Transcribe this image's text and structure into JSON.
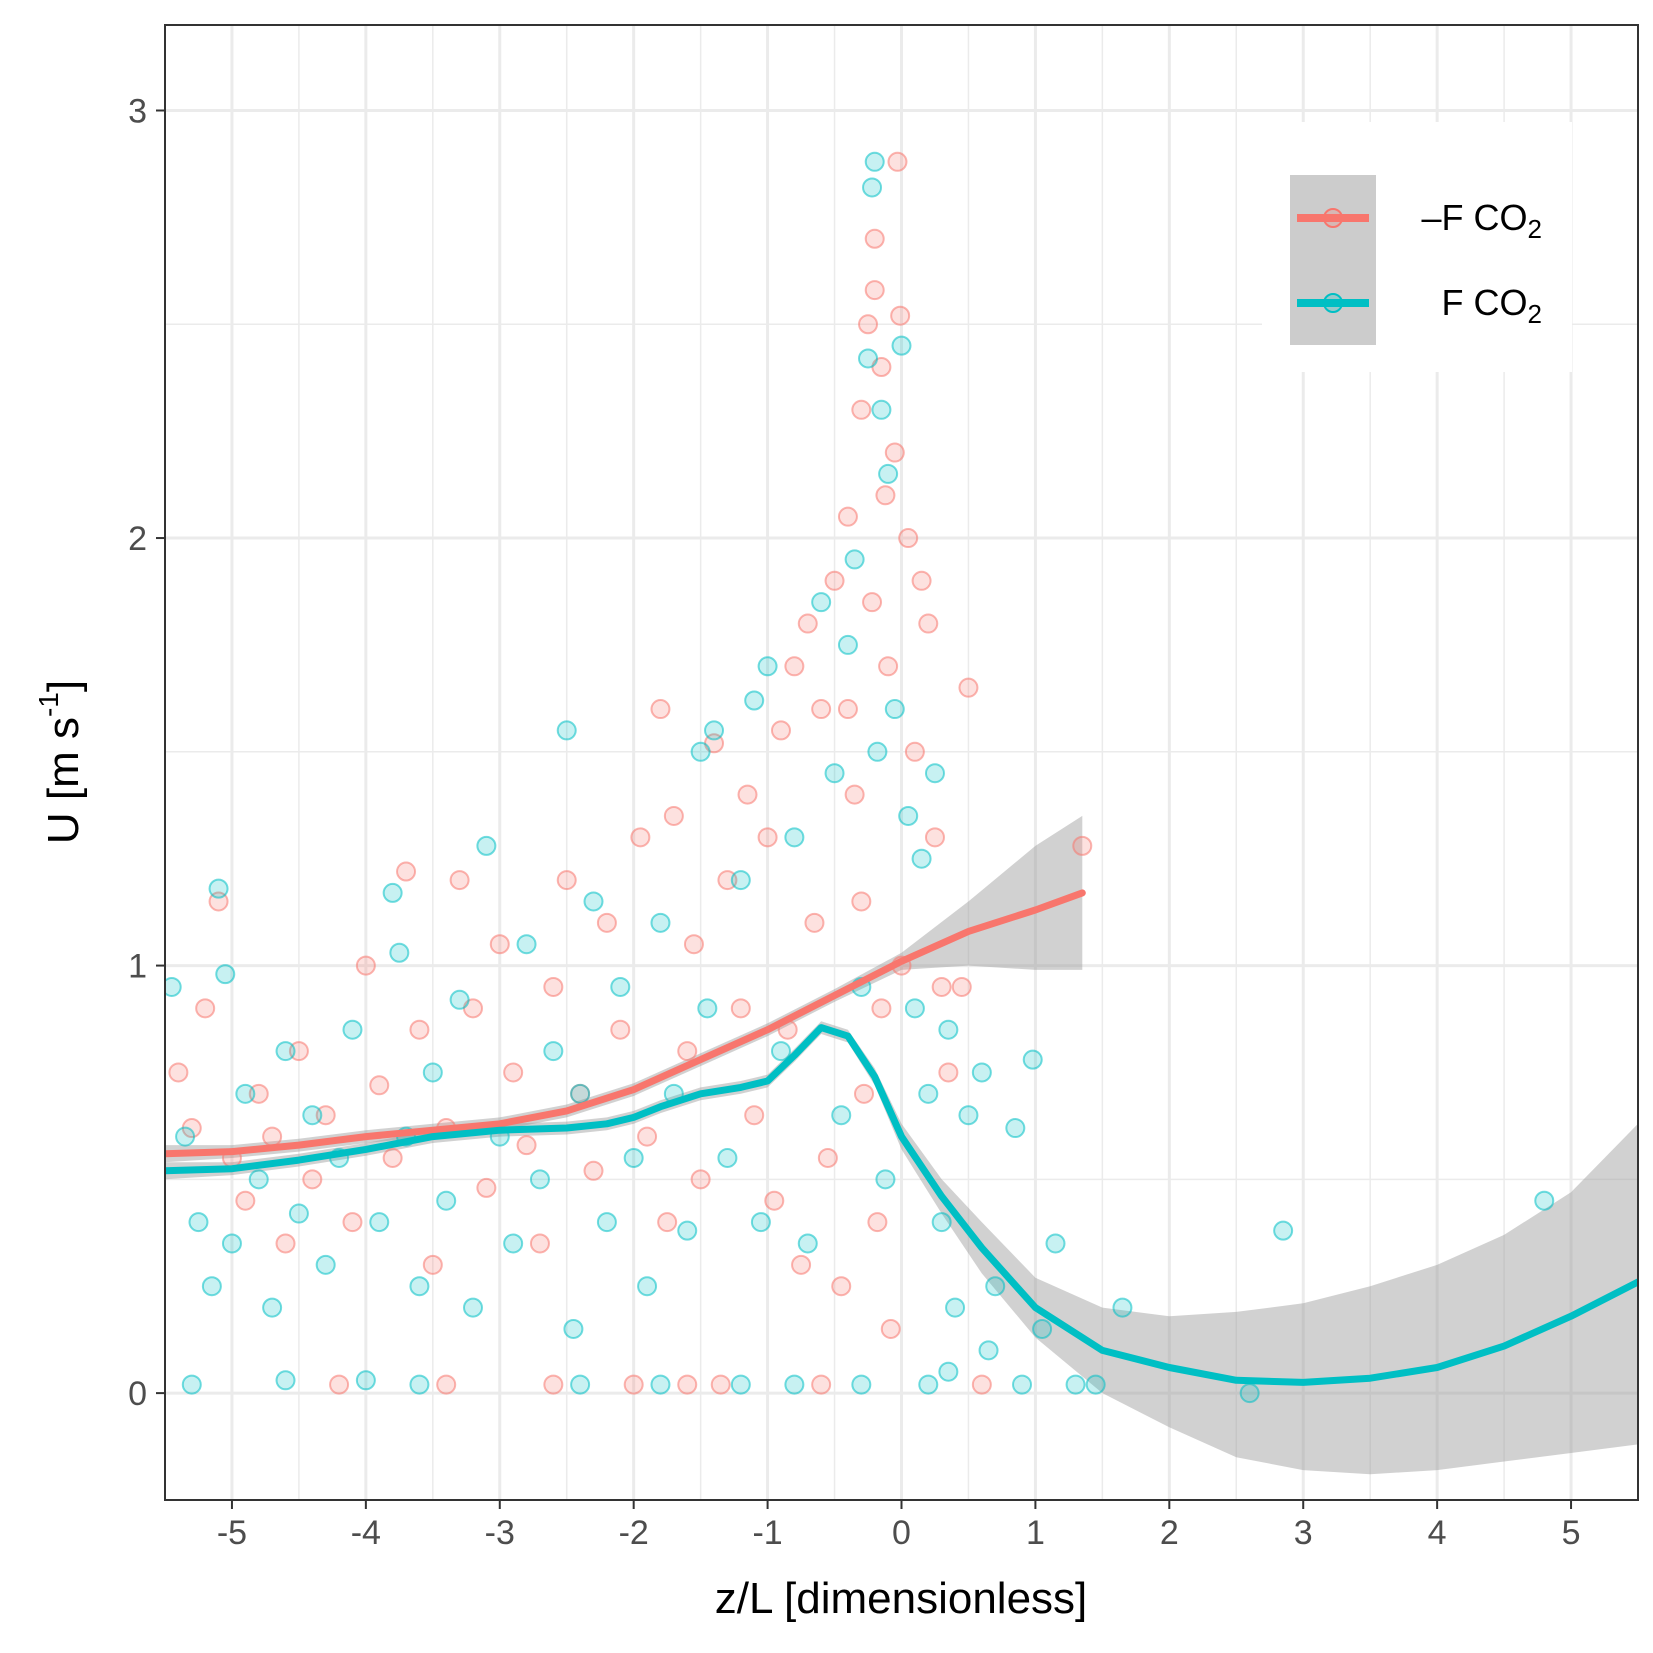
{
  "chart_data": {
    "type": "scatter",
    "xlabel": "z/L [dimensionless]",
    "ylabel": {
      "main": "U [m s",
      "sup": "-1",
      "close": "]"
    },
    "xlim": [
      -5.5,
      5.5
    ],
    "ylim": [
      -0.25,
      3.2
    ],
    "x_ticks": [
      -5,
      -4,
      -3,
      -2,
      -1,
      0,
      1,
      2,
      3,
      4,
      5
    ],
    "y_ticks": [
      0,
      1,
      2,
      3
    ],
    "grid": true,
    "legend_position": "top-right",
    "series": [
      {
        "name": "–F CO",
        "name_sub": "2",
        "color": "#F8766D",
        "smooth": {
          "x": [
            -5.5,
            -5,
            -4.5,
            -4,
            -3.5,
            -3,
            -2.5,
            -2,
            -1.5,
            -1,
            -0.5,
            0,
            0.5,
            1,
            1.35
          ],
          "y": [
            0.56,
            0.565,
            0.58,
            0.6,
            0.615,
            0.63,
            0.66,
            0.71,
            0.78,
            0.85,
            0.93,
            1.01,
            1.08,
            1.13,
            1.17
          ],
          "lower": [
            0.54,
            0.55,
            0.565,
            0.585,
            0.6,
            0.615,
            0.645,
            0.695,
            0.765,
            0.835,
            0.915,
            0.99,
            1.0,
            0.99,
            0.99
          ],
          "upper": [
            0.58,
            0.58,
            0.595,
            0.615,
            0.63,
            0.645,
            0.675,
            0.725,
            0.795,
            0.865,
            0.945,
            1.03,
            1.15,
            1.28,
            1.35
          ]
        },
        "points": [
          [
            -5.4,
            0.75
          ],
          [
            -5.3,
            0.62
          ],
          [
            -5.2,
            0.9
          ],
          [
            -5.1,
            1.15
          ],
          [
            -5.0,
            0.55
          ],
          [
            -4.9,
            0.45
          ],
          [
            -4.8,
            0.7
          ],
          [
            -4.7,
            0.6
          ],
          [
            -4.6,
            0.35
          ],
          [
            -4.5,
            0.8
          ],
          [
            -4.4,
            0.5
          ],
          [
            -4.3,
            0.65
          ],
          [
            -4.2,
            0.02
          ],
          [
            -4.1,
            0.4
          ],
          [
            -4.0,
            1.0
          ],
          [
            -3.9,
            0.72
          ],
          [
            -3.8,
            0.55
          ],
          [
            -3.7,
            1.22
          ],
          [
            -3.6,
            0.85
          ],
          [
            -3.5,
            0.3
          ],
          [
            -3.4,
            0.62
          ],
          [
            -3.3,
            1.2
          ],
          [
            -3.2,
            0.9
          ],
          [
            -3.1,
            0.48
          ],
          [
            -3.0,
            1.05
          ],
          [
            -2.9,
            0.75
          ],
          [
            -2.8,
            0.58
          ],
          [
            -2.7,
            0.35
          ],
          [
            -2.6,
            0.95
          ],
          [
            -2.5,
            1.2
          ],
          [
            -2.4,
            0.7
          ],
          [
            -2.3,
            0.52
          ],
          [
            -2.2,
            1.1
          ],
          [
            -2.1,
            0.85
          ],
          [
            -2.0,
            0.02
          ],
          [
            -1.95,
            1.3
          ],
          [
            -1.9,
            0.6
          ],
          [
            -1.8,
            1.6
          ],
          [
            -1.75,
            0.4
          ],
          [
            -1.7,
            1.35
          ],
          [
            -1.6,
            0.8
          ],
          [
            -1.55,
            1.05
          ],
          [
            -1.5,
            0.5
          ],
          [
            -1.4,
            1.52
          ],
          [
            -1.35,
            0.02
          ],
          [
            -1.3,
            1.2
          ],
          [
            -1.2,
            0.9
          ],
          [
            -1.15,
            1.4
          ],
          [
            -1.1,
            0.65
          ],
          [
            -1.0,
            1.3
          ],
          [
            -0.95,
            0.45
          ],
          [
            -0.9,
            1.55
          ],
          [
            -0.85,
            0.85
          ],
          [
            -0.8,
            1.7
          ],
          [
            -0.75,
            0.3
          ],
          [
            -0.7,
            1.8
          ],
          [
            -0.65,
            1.1
          ],
          [
            -0.6,
            1.6
          ],
          [
            -0.55,
            0.55
          ],
          [
            -0.5,
            1.9
          ],
          [
            -0.45,
            0.25
          ],
          [
            -0.4,
            2.05
          ],
          [
            -0.35,
            1.4
          ],
          [
            -0.3,
            2.3
          ],
          [
            -0.28,
            0.7
          ],
          [
            -0.25,
            2.5
          ],
          [
            -0.22,
            1.85
          ],
          [
            -0.2,
            2.58
          ],
          [
            -0.18,
            0.4
          ],
          [
            -0.15,
            2.4
          ],
          [
            -0.12,
            2.1
          ],
          [
            -0.1,
            1.7
          ],
          [
            -0.08,
            0.15
          ],
          [
            -0.05,
            2.2
          ],
          [
            -0.03,
            2.88
          ],
          [
            -0.01,
            2.52
          ],
          [
            0.0,
            1.0
          ],
          [
            0.05,
            2.0
          ],
          [
            0.1,
            1.5
          ],
          [
            0.15,
            1.9
          ],
          [
            0.2,
            1.8
          ],
          [
            0.25,
            1.3
          ],
          [
            0.3,
            0.95
          ],
          [
            0.35,
            0.75
          ],
          [
            0.45,
            0.95
          ],
          [
            0.5,
            1.65
          ],
          [
            0.6,
            0.02
          ],
          [
            1.35,
            1.28
          ],
          [
            -0.6,
            0.02
          ],
          [
            -1.6,
            0.02
          ],
          [
            -2.6,
            0.02
          ],
          [
            -3.4,
            0.02
          ],
          [
            -0.2,
            2.7
          ],
          [
            -0.4,
            1.6
          ],
          [
            -0.15,
            0.9
          ],
          [
            -0.3,
            1.15
          ]
        ]
      },
      {
        "name": "F CO",
        "name_sub": "2",
        "color": "#00BFC4",
        "smooth": {
          "x": [
            -5.5,
            -5,
            -4.5,
            -4,
            -3.5,
            -3,
            -2.5,
            -2.2,
            -2,
            -1.8,
            -1.5,
            -1.2,
            -1,
            -0.8,
            -0.6,
            -0.4,
            -0.2,
            0,
            0.3,
            0.6,
            1,
            1.5,
            2,
            2.5,
            3,
            3.5,
            4,
            4.5,
            5,
            5.5
          ],
          "y": [
            0.52,
            0.525,
            0.545,
            0.57,
            0.6,
            0.615,
            0.62,
            0.63,
            0.645,
            0.67,
            0.7,
            0.715,
            0.73,
            0.79,
            0.855,
            0.835,
            0.74,
            0.6,
            0.46,
            0.34,
            0.2,
            0.1,
            0.06,
            0.03,
            0.025,
            0.035,
            0.06,
            0.11,
            0.18,
            0.26
          ],
          "lower": [
            0.5,
            0.51,
            0.53,
            0.555,
            0.585,
            0.6,
            0.605,
            0.615,
            0.63,
            0.655,
            0.685,
            0.7,
            0.715,
            0.775,
            0.84,
            0.82,
            0.72,
            0.57,
            0.42,
            0.28,
            0.13,
            0.0,
            -0.08,
            -0.15,
            -0.18,
            -0.19,
            -0.18,
            -0.16,
            -0.14,
            -0.12
          ],
          "upper": [
            0.54,
            0.54,
            0.56,
            0.585,
            0.615,
            0.63,
            0.635,
            0.645,
            0.66,
            0.685,
            0.715,
            0.73,
            0.745,
            0.805,
            0.87,
            0.85,
            0.76,
            0.63,
            0.5,
            0.4,
            0.27,
            0.2,
            0.18,
            0.19,
            0.21,
            0.25,
            0.3,
            0.37,
            0.47,
            0.63
          ]
        },
        "points": [
          [
            -5.45,
            0.95
          ],
          [
            -5.35,
            0.6
          ],
          [
            -5.25,
            0.4
          ],
          [
            -5.15,
            0.25
          ],
          [
            -5.1,
            1.18
          ],
          [
            -5.05,
            0.98
          ],
          [
            -5.0,
            0.35
          ],
          [
            -4.9,
            0.7
          ],
          [
            -4.8,
            0.5
          ],
          [
            -4.7,
            0.2
          ],
          [
            -4.6,
            0.8
          ],
          [
            -4.5,
            0.42
          ],
          [
            -4.4,
            0.65
          ],
          [
            -4.3,
            0.3
          ],
          [
            -4.2,
            0.55
          ],
          [
            -4.1,
            0.85
          ],
          [
            -4.0,
            0.03
          ],
          [
            -3.9,
            0.4
          ],
          [
            -3.8,
            1.17
          ],
          [
            -3.75,
            1.03
          ],
          [
            -3.7,
            0.6
          ],
          [
            -3.6,
            0.25
          ],
          [
            -3.5,
            0.75
          ],
          [
            -3.4,
            0.45
          ],
          [
            -3.3,
            0.92
          ],
          [
            -3.2,
            0.2
          ],
          [
            -3.1,
            1.28
          ],
          [
            -3.0,
            0.6
          ],
          [
            -2.9,
            0.35
          ],
          [
            -2.8,
            1.05
          ],
          [
            -2.7,
            0.5
          ],
          [
            -2.6,
            0.8
          ],
          [
            -2.5,
            1.55
          ],
          [
            -2.45,
            0.15
          ],
          [
            -2.4,
            0.7
          ],
          [
            -2.3,
            1.15
          ],
          [
            -2.2,
            0.4
          ],
          [
            -2.1,
            0.95
          ],
          [
            -2.0,
            0.55
          ],
          [
            -1.9,
            0.25
          ],
          [
            -1.8,
            1.1
          ],
          [
            -1.7,
            0.7
          ],
          [
            -1.6,
            0.38
          ],
          [
            -1.5,
            1.5
          ],
          [
            -1.45,
            0.9
          ],
          [
            -1.4,
            1.55
          ],
          [
            -1.3,
            0.55
          ],
          [
            -1.2,
            1.2
          ],
          [
            -1.1,
            1.62
          ],
          [
            -1.05,
            0.4
          ],
          [
            -1.0,
            1.7
          ],
          [
            -0.9,
            0.8
          ],
          [
            -0.8,
            1.3
          ],
          [
            -0.7,
            0.35
          ],
          [
            -0.6,
            1.85
          ],
          [
            -0.5,
            1.45
          ],
          [
            -0.45,
            0.65
          ],
          [
            -0.4,
            1.75
          ],
          [
            -0.35,
            1.95
          ],
          [
            -0.3,
            0.95
          ],
          [
            -0.25,
            2.42
          ],
          [
            -0.22,
            2.82
          ],
          [
            -0.2,
            2.88
          ],
          [
            -0.18,
            1.5
          ],
          [
            -0.15,
            2.3
          ],
          [
            -0.12,
            0.5
          ],
          [
            -0.1,
            2.15
          ],
          [
            -0.05,
            1.6
          ],
          [
            0.0,
            2.45
          ],
          [
            0.05,
            1.35
          ],
          [
            0.1,
            0.9
          ],
          [
            0.15,
            1.25
          ],
          [
            0.2,
            0.7
          ],
          [
            0.25,
            1.45
          ],
          [
            0.3,
            0.4
          ],
          [
            0.35,
            0.85
          ],
          [
            0.4,
            0.2
          ],
          [
            0.5,
            0.65
          ],
          [
            0.6,
            0.75
          ],
          [
            0.65,
            0.1
          ],
          [
            0.7,
            0.25
          ],
          [
            0.85,
            0.62
          ],
          [
            0.9,
            0.02
          ],
          [
            0.98,
            0.78
          ],
          [
            1.05,
            0.15
          ],
          [
            1.15,
            0.35
          ],
          [
            1.3,
            0.02
          ],
          [
            1.45,
            0.02
          ],
          [
            1.65,
            0.2
          ],
          [
            2.6,
            0.0
          ],
          [
            2.85,
            0.38
          ],
          [
            4.8,
            0.45
          ],
          [
            -5.3,
            0.02
          ],
          [
            -4.6,
            0.03
          ],
          [
            -3.6,
            0.02
          ],
          [
            -2.4,
            0.02
          ],
          [
            -1.8,
            0.02
          ],
          [
            -1.2,
            0.02
          ],
          [
            -0.8,
            0.02
          ],
          [
            -0.3,
            0.02
          ],
          [
            0.2,
            0.02
          ],
          [
            0.35,
            0.05
          ]
        ]
      }
    ]
  }
}
